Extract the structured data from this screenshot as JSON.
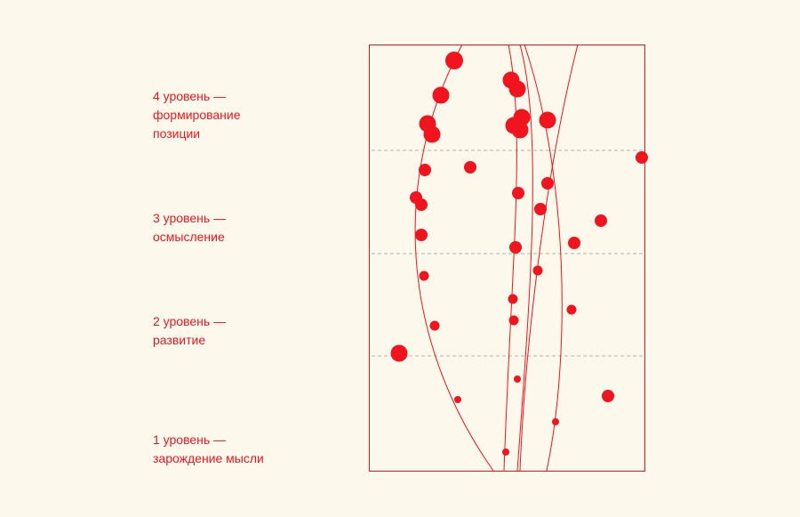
{
  "levels": [
    {
      "lines": [
        "4 уровень —",
        "формирование",
        "позиции"
      ]
    },
    {
      "lines": [
        "3 уровень —",
        "осмысление"
      ]
    },
    {
      "lines": [
        "2 уровень —",
        "развитие"
      ]
    },
    {
      "lines": [
        "1 уровень —",
        "зарождение мысли"
      ]
    }
  ]
}
